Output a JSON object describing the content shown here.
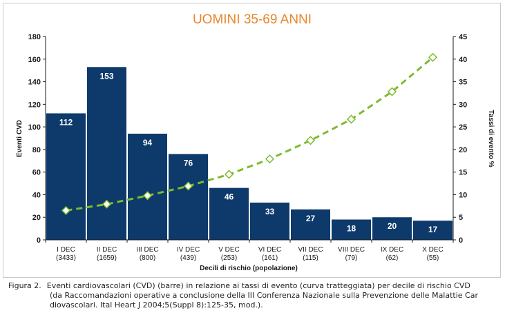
{
  "chart_data": {
    "type": "bar",
    "title": "UOMINI 35-69 ANNI",
    "xlabel": "Decili di rischio (popolazione)",
    "ylabel": "Eventi CVD",
    "y2label": "Tassi di evento %",
    "categories": [
      "I DEC",
      "II DEC",
      "III DEC",
      "IV DEC",
      "V DEC",
      "VI DEC",
      "VII DEC",
      "VIII DEC",
      "IX DEC",
      "X DEC"
    ],
    "populations": [
      "(3433)",
      "(1659)",
      "(800)",
      "(439)",
      "(253)",
      "(161)",
      "(115)",
      "(79)",
      "(62)",
      "(55)"
    ],
    "series": [
      {
        "type": "bar",
        "axis": "left",
        "values": [
          112,
          153,
          94,
          76,
          46,
          33,
          27,
          18,
          20,
          17
        ]
      },
      {
        "type": "line",
        "style": "dashed",
        "markers": "diamond",
        "axis": "right",
        "values": [
          6.5,
          7.9,
          9.8,
          11.9,
          14.5,
          17.9,
          22.0,
          26.7,
          32.8,
          40.4
        ]
      }
    ],
    "ylim": [
      0,
      180
    ],
    "yticks": [
      0,
      20,
      40,
      60,
      80,
      100,
      120,
      140,
      160,
      180
    ],
    "y2lim": [
      0,
      45
    ],
    "y2ticks": [
      0,
      5,
      10,
      15,
      20,
      25,
      30,
      35,
      40,
      45
    ],
    "colors": {
      "bar": "#0d3a6b",
      "bar_label": "#ffffff",
      "line": "#7dbb2f",
      "marker_fill": "#ffffff",
      "marker_stroke": "#7dbb2f",
      "title": "#e8862b",
      "axis": "#1a1a1a"
    },
    "grid": false,
    "legend": "none"
  },
  "caption": {
    "label": "Figura 2.",
    "line1": "Eventi cardiovascolari (CVD) (barre) in relazione ai tassi di evento (curva tratteggiata) per decile di rischio CVD",
    "line2": "(da Raccomandazioni operative a conclusione della III Conferenza Nazionale sulla Prevenzione delle Malattie Car",
    "line3": "diovascolari. Ital Heart J 2004;5(Suppl 8):125-35, mod.)."
  }
}
